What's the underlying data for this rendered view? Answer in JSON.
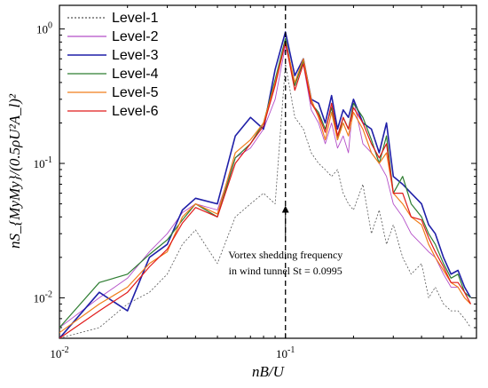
{
  "chart_data": {
    "type": "line",
    "xscale": "log",
    "yscale": "log",
    "xlim": [
      0.01,
      0.7
    ],
    "ylim": [
      0.005,
      1.5
    ],
    "xlabel": "nB/U",
    "ylabel": "nS_{MyMy}/(0.5ρU²A_l)²",
    "x_ticks": [
      {
        "value": 0.01,
        "label": "10",
        "exp": "-2"
      },
      {
        "value": 0.1,
        "label": "10",
        "exp": "-1"
      }
    ],
    "y_ticks": [
      {
        "value": 0.01,
        "label": "10",
        "exp": "-2"
      },
      {
        "value": 0.1,
        "label": "10",
        "exp": "-1"
      },
      {
        "value": 1,
        "label": "10",
        "exp": "0"
      }
    ],
    "legend": {
      "position": "top-left"
    },
    "vline": {
      "x": 0.1,
      "style": "dashed"
    },
    "annotation": {
      "line1": "Vortex shedding frequency",
      "line2": "in wind tunnel St = 0.0995",
      "arrow_to": {
        "x": 0.1,
        "y": 0.05
      },
      "text_at": {
        "x": 0.1,
        "y": 0.018
      }
    },
    "series": [
      {
        "name": "Level-1",
        "color": "#555555",
        "width": 0.8,
        "dash": "2,2",
        "x": [
          0.01,
          0.015,
          0.02,
          0.025,
          0.03,
          0.035,
          0.04,
          0.05,
          0.06,
          0.07,
          0.08,
          0.09,
          0.1,
          0.11,
          0.12,
          0.13,
          0.14,
          0.15,
          0.16,
          0.17,
          0.18,
          0.19,
          0.2,
          0.22,
          0.24,
          0.26,
          0.28,
          0.3,
          0.33,
          0.36,
          0.4,
          0.43,
          0.46,
          0.5,
          0.54,
          0.58,
          0.62,
          0.66
        ],
        "y": [
          0.005,
          0.006,
          0.009,
          0.011,
          0.015,
          0.025,
          0.032,
          0.018,
          0.04,
          0.05,
          0.06,
          0.05,
          0.55,
          0.22,
          0.18,
          0.12,
          0.1,
          0.09,
          0.08,
          0.09,
          0.06,
          0.05,
          0.045,
          0.07,
          0.03,
          0.045,
          0.025,
          0.035,
          0.02,
          0.015,
          0.018,
          0.01,
          0.012,
          0.009,
          0.008,
          0.008,
          0.007,
          0.006
        ]
      },
      {
        "name": "Level-2",
        "color": "#b44fc8",
        "width": 0.9,
        "dash": null,
        "x": [
          0.01,
          0.015,
          0.02,
          0.025,
          0.03,
          0.035,
          0.04,
          0.05,
          0.06,
          0.07,
          0.08,
          0.09,
          0.1,
          0.11,
          0.12,
          0.13,
          0.14,
          0.15,
          0.16,
          0.17,
          0.18,
          0.19,
          0.2,
          0.22,
          0.24,
          0.26,
          0.28,
          0.3,
          0.33,
          0.36,
          0.4,
          0.43,
          0.46,
          0.5,
          0.54,
          0.58,
          0.62,
          0.66
        ],
        "y": [
          0.006,
          0.01,
          0.014,
          0.022,
          0.03,
          0.043,
          0.05,
          0.045,
          0.11,
          0.13,
          0.18,
          0.3,
          0.75,
          0.4,
          0.55,
          0.25,
          0.2,
          0.14,
          0.2,
          0.13,
          0.16,
          0.12,
          0.3,
          0.14,
          0.12,
          0.1,
          0.08,
          0.05,
          0.04,
          0.03,
          0.025,
          0.022,
          0.02,
          0.015,
          0.012,
          0.012,
          0.01,
          0.009
        ]
      },
      {
        "name": "Level-3",
        "color": "#1f1fa8",
        "width": 1.6,
        "dash": null,
        "x": [
          0.01,
          0.015,
          0.02,
          0.025,
          0.03,
          0.035,
          0.04,
          0.05,
          0.06,
          0.07,
          0.08,
          0.09,
          0.1,
          0.11,
          0.12,
          0.13,
          0.14,
          0.15,
          0.16,
          0.17,
          0.18,
          0.19,
          0.2,
          0.22,
          0.24,
          0.26,
          0.28,
          0.3,
          0.33,
          0.36,
          0.4,
          0.43,
          0.46,
          0.5,
          0.54,
          0.58,
          0.62,
          0.66
        ],
        "y": [
          0.005,
          0.011,
          0.008,
          0.02,
          0.025,
          0.045,
          0.055,
          0.05,
          0.16,
          0.22,
          0.18,
          0.5,
          0.95,
          0.45,
          0.6,
          0.3,
          0.28,
          0.2,
          0.32,
          0.18,
          0.25,
          0.22,
          0.3,
          0.2,
          0.18,
          0.12,
          0.2,
          0.08,
          0.07,
          0.06,
          0.05,
          0.035,
          0.03,
          0.02,
          0.015,
          0.016,
          0.012,
          0.01
        ]
      },
      {
        "name": "Level-4",
        "color": "#2e7d32",
        "width": 1.2,
        "dash": null,
        "x": [
          0.01,
          0.015,
          0.02,
          0.025,
          0.03,
          0.035,
          0.04,
          0.05,
          0.06,
          0.07,
          0.08,
          0.09,
          0.1,
          0.11,
          0.12,
          0.13,
          0.14,
          0.15,
          0.16,
          0.17,
          0.18,
          0.19,
          0.2,
          0.22,
          0.24,
          0.26,
          0.28,
          0.3,
          0.33,
          0.36,
          0.4,
          0.43,
          0.46,
          0.5,
          0.54,
          0.58,
          0.62,
          0.66
        ],
        "y": [
          0.006,
          0.013,
          0.015,
          0.021,
          0.027,
          0.038,
          0.05,
          0.04,
          0.11,
          0.14,
          0.2,
          0.42,
          0.85,
          0.38,
          0.58,
          0.28,
          0.24,
          0.18,
          0.26,
          0.15,
          0.22,
          0.18,
          0.28,
          0.22,
          0.15,
          0.1,
          0.16,
          0.06,
          0.08,
          0.05,
          0.04,
          0.03,
          0.025,
          0.018,
          0.014,
          0.015,
          0.011,
          0.01
        ]
      },
      {
        "name": "Level-5",
        "color": "#f07d1a",
        "width": 1.2,
        "dash": null,
        "x": [
          0.01,
          0.015,
          0.02,
          0.025,
          0.03,
          0.035,
          0.04,
          0.05,
          0.06,
          0.07,
          0.08,
          0.09,
          0.1,
          0.11,
          0.12,
          0.13,
          0.14,
          0.15,
          0.16,
          0.17,
          0.18,
          0.19,
          0.2,
          0.22,
          0.24,
          0.26,
          0.28,
          0.3,
          0.33,
          0.36,
          0.4,
          0.43,
          0.46,
          0.5,
          0.54,
          0.58,
          0.62,
          0.66
        ],
        "y": [
          0.0055,
          0.009,
          0.012,
          0.018,
          0.022,
          0.04,
          0.05,
          0.042,
          0.12,
          0.15,
          0.2,
          0.4,
          0.8,
          0.4,
          0.6,
          0.3,
          0.22,
          0.15,
          0.24,
          0.15,
          0.2,
          0.16,
          0.24,
          0.18,
          0.12,
          0.1,
          0.12,
          0.06,
          0.05,
          0.04,
          0.035,
          0.025,
          0.02,
          0.016,
          0.013,
          0.012,
          0.01,
          0.009
        ]
      },
      {
        "name": "Level-6",
        "color": "#e01a1a",
        "width": 1.2,
        "dash": null,
        "x": [
          0.01,
          0.015,
          0.02,
          0.025,
          0.03,
          0.035,
          0.04,
          0.05,
          0.06,
          0.07,
          0.08,
          0.09,
          0.1,
          0.11,
          0.12,
          0.13,
          0.14,
          0.15,
          0.16,
          0.17,
          0.18,
          0.19,
          0.2,
          0.22,
          0.24,
          0.26,
          0.28,
          0.3,
          0.33,
          0.36,
          0.4,
          0.43,
          0.46,
          0.5,
          0.54,
          0.58,
          0.62,
          0.66
        ],
        "y": [
          0.005,
          0.008,
          0.011,
          0.017,
          0.023,
          0.036,
          0.047,
          0.04,
          0.1,
          0.14,
          0.19,
          0.38,
          0.8,
          0.35,
          0.55,
          0.28,
          0.23,
          0.17,
          0.28,
          0.16,
          0.22,
          0.18,
          0.26,
          0.2,
          0.14,
          0.11,
          0.14,
          0.06,
          0.06,
          0.04,
          0.038,
          0.028,
          0.022,
          0.017,
          0.013,
          0.013,
          0.011,
          0.009
        ]
      }
    ]
  }
}
